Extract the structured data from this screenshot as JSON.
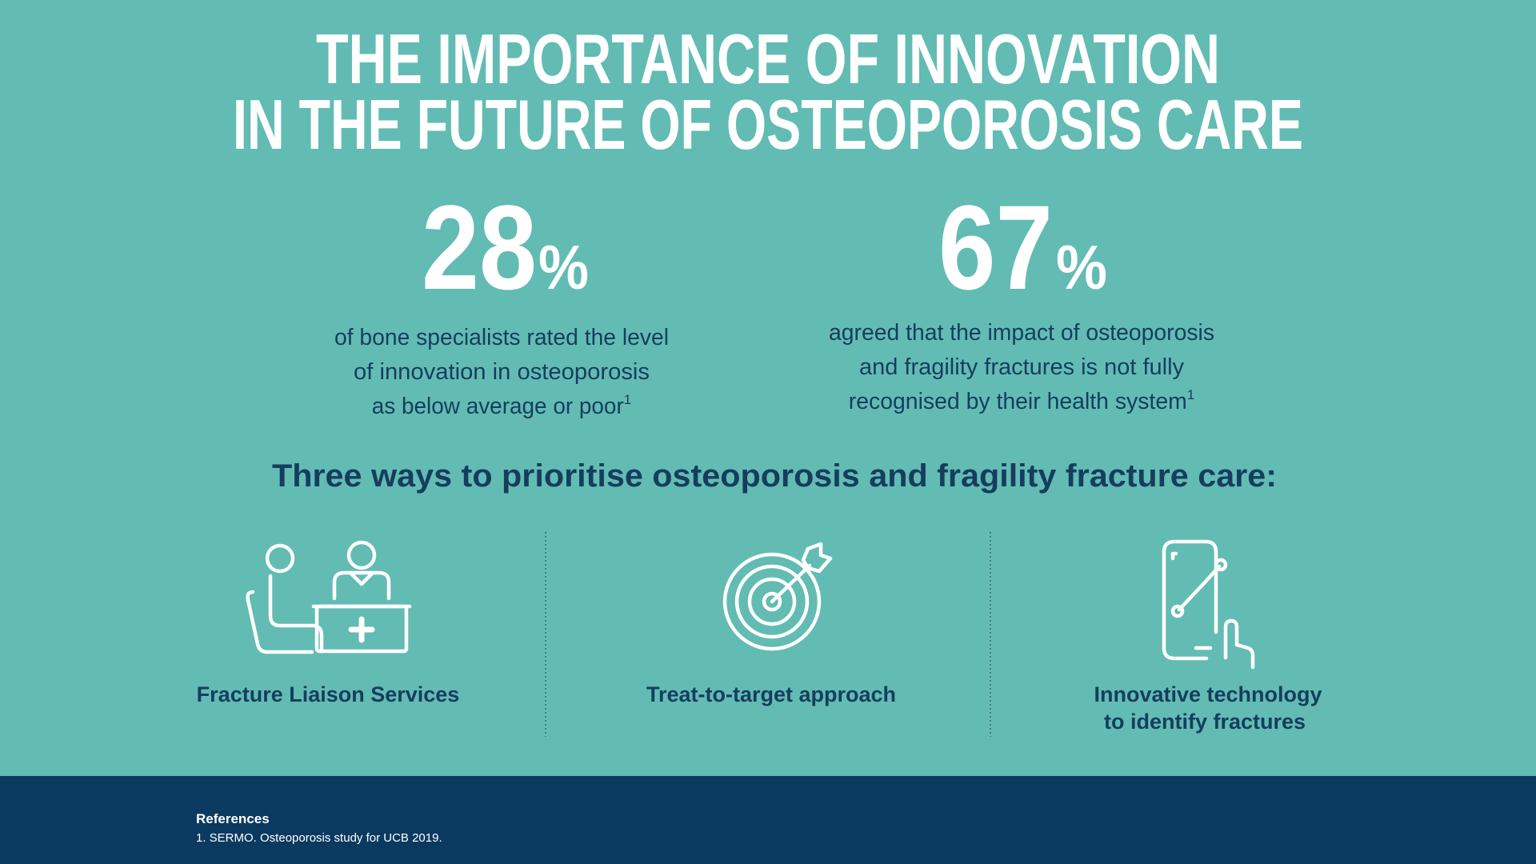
{
  "title": [
    "THE IMPORTANCE OF INNOVATION",
    "IN THE FUTURE OF OSTEOPOROSIS CARE"
  ],
  "stats": [
    {
      "number": 28,
      "unit": "%",
      "description": [
        "of bone specialists rated the level",
        "of innovation in osteoporosis",
        "as below average or poor"
      ],
      "footnote": "1"
    },
    {
      "number": 67,
      "unit": "%",
      "description": [
        "agreed that the impact of osteoporosis",
        "and fragility fractures is not fully",
        "recognised by their health system"
      ],
      "footnote": "1"
    }
  ],
  "subheading": "Three ways to prioritise osteoporosis and fragility fracture care:",
  "ways": [
    {
      "label": [
        "Fracture Liaison Services"
      ]
    },
    {
      "label": [
        "Treat-to-target approach"
      ]
    },
    {
      "label": [
        "Innovative technology",
        "to identify fractures"
      ]
    }
  ],
  "references": {
    "heading": "References",
    "items": [
      "1. SERMO. Osteoporosis study for UCB 2019."
    ]
  }
}
